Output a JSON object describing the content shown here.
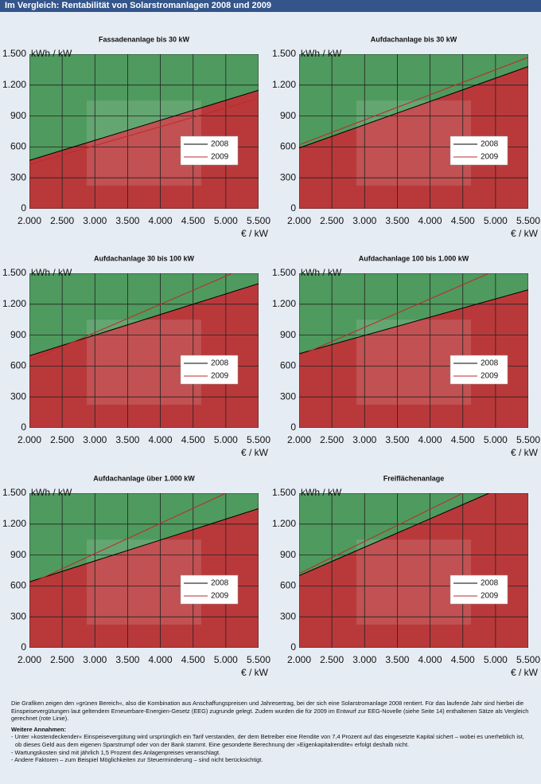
{
  "header": {
    "title": "Im Vergleich: Rentabilität von Solarstromanlagen 2008 und 2009"
  },
  "chart_data": [
    {
      "type": "line",
      "title": "Fassadenanlage bis 30 kW",
      "y_label": "kWh / kW",
      "x_label": "€ / kW",
      "xlim": [
        2000,
        5500
      ],
      "ylim": [
        0,
        1500
      ],
      "grid": true,
      "xticks": [
        {
          "value": 2000,
          "label": "2.000"
        },
        {
          "value": 2500,
          "label": "2.500"
        },
        {
          "value": 3000,
          "label": "3.000"
        },
        {
          "value": 3500,
          "label": "3.500"
        },
        {
          "value": 4000,
          "label": "4.000"
        },
        {
          "value": 4500,
          "label": "4.500"
        },
        {
          "value": 5000,
          "label": "5.000"
        },
        {
          "value": 5500,
          "label": "5.500"
        }
      ],
      "yticks": [
        0,
        300,
        600,
        900,
        {
          "value": 1200,
          "label": "1.200"
        },
        {
          "value": 1500,
          "label": "1.500"
        }
      ],
      "series": [
        {
          "name": "2008",
          "color": "#000000",
          "x": [
            2000,
            5500
          ],
          "values": [
            470,
            1150
          ]
        },
        {
          "name": "2009",
          "color": "#c0282a",
          "x": [
            2000,
            5500
          ],
          "values": [
            430,
            1070
          ]
        }
      ]
    },
    {
      "type": "line",
      "title": "Aufdachanlage bis 30 kW",
      "y_label": "kWh / kW",
      "x_label": "€ / kW",
      "xlim": [
        2000,
        5500
      ],
      "ylim": [
        0,
        1500
      ],
      "grid": true,
      "xticks": [
        {
          "value": 2000,
          "label": "2.000"
        },
        {
          "value": 2500,
          "label": "2.500"
        },
        {
          "value": 3000,
          "label": "3.000"
        },
        {
          "value": 3500,
          "label": "3.500"
        },
        {
          "value": 4000,
          "label": "4.000"
        },
        {
          "value": 4500,
          "label": "4.500"
        },
        {
          "value": 5000,
          "label": "5.000"
        },
        {
          "value": 5500,
          "label": "5.500"
        }
      ],
      "yticks": [
        0,
        300,
        600,
        900,
        {
          "value": 1200,
          "label": "1.200"
        },
        {
          "value": 1500,
          "label": "1.500"
        }
      ],
      "series": [
        {
          "name": "2008",
          "color": "#000000",
          "x": [
            2000,
            5500
          ],
          "values": [
            590,
            1380
          ]
        },
        {
          "name": "2009",
          "color": "#c0282a",
          "x": [
            2000,
            5500
          ],
          "values": [
            620,
            1470
          ]
        }
      ]
    },
    {
      "type": "line",
      "title": "Aufdachanlage 30 bis 100 kW",
      "y_label": "kWh / kW",
      "x_label": "€ / kW",
      "xlim": [
        2000,
        5500
      ],
      "ylim": [
        0,
        1500
      ],
      "grid": true,
      "xticks": [
        {
          "value": 2000,
          "label": "2.000"
        },
        {
          "value": 2500,
          "label": "2.500"
        },
        {
          "value": 3000,
          "label": "3.000"
        },
        {
          "value": 3500,
          "label": "3.500"
        },
        {
          "value": 4000,
          "label": "4.000"
        },
        {
          "value": 4500,
          "label": "4.500"
        },
        {
          "value": 5000,
          "label": "5.000"
        },
        {
          "value": 5500,
          "label": "5.500"
        }
      ],
      "yticks": [
        0,
        300,
        600,
        900,
        {
          "value": 1200,
          "label": "1.200"
        },
        {
          "value": 1500,
          "label": "1.500"
        }
      ],
      "series": [
        {
          "name": "2008",
          "color": "#000000",
          "x": [
            2000,
            5500
          ],
          "values": [
            700,
            1400
          ]
        },
        {
          "name": "2009",
          "color": "#c0282a",
          "x": [
            2000,
            5100
          ],
          "values": [
            650,
            1500
          ]
        }
      ]
    },
    {
      "type": "line",
      "title": "Aufdachanlage 100 bis 1.000 kW",
      "y_label": "kWh / kW",
      "x_label": "€ / kW",
      "xlim": [
        2000,
        5500
      ],
      "ylim": [
        0,
        1500
      ],
      "grid": true,
      "xticks": [
        {
          "value": 2000,
          "label": "2.000"
        },
        {
          "value": 2500,
          "label": "2.500"
        },
        {
          "value": 3000,
          "label": "3.000"
        },
        {
          "value": 3500,
          "label": "3.500"
        },
        {
          "value": 4000,
          "label": "4.000"
        },
        {
          "value": 4500,
          "label": "4.500"
        },
        {
          "value": 5000,
          "label": "5.000"
        },
        {
          "value": 5500,
          "label": "5.500"
        }
      ],
      "yticks": [
        0,
        300,
        600,
        900,
        {
          "value": 1200,
          "label": "1.200"
        },
        {
          "value": 1500,
          "label": "1.500"
        }
      ],
      "series": [
        {
          "name": "2008",
          "color": "#000000",
          "x": [
            2000,
            5500
          ],
          "values": [
            720,
            1340
          ]
        },
        {
          "name": "2009",
          "color": "#c0282a",
          "x": [
            2000,
            4900
          ],
          "values": [
            700,
            1500
          ]
        }
      ]
    },
    {
      "type": "line",
      "title": "Aufdachanlage über 1.000 kW",
      "y_label": "kWh / kW",
      "x_label": "€ / kW",
      "xlim": [
        2000,
        5500
      ],
      "ylim": [
        0,
        1500
      ],
      "grid": true,
      "xticks": [
        {
          "value": 2000,
          "label": "2.000"
        },
        {
          "value": 2500,
          "label": "2.500"
        },
        {
          "value": 3000,
          "label": "3.000"
        },
        {
          "value": 3500,
          "label": "3.500"
        },
        {
          "value": 4000,
          "label": "4.000"
        },
        {
          "value": 4500,
          "label": "4.500"
        },
        {
          "value": 5000,
          "label": "5.000"
        },
        {
          "value": 5500,
          "label": "5.500"
        }
      ],
      "yticks": [
        0,
        300,
        600,
        900,
        {
          "value": 1200,
          "label": "1.200"
        },
        {
          "value": 1500,
          "label": "1.500"
        }
      ],
      "series": [
        {
          "name": "2008",
          "color": "#000000",
          "x": [
            2000,
            5500
          ],
          "values": [
            640,
            1350
          ]
        },
        {
          "name": "2009",
          "color": "#c0282a",
          "x": [
            2000,
            5000
          ],
          "values": [
            620,
            1500
          ]
        }
      ]
    },
    {
      "type": "line",
      "title": "Freiflächenanlage",
      "y_label": "kWh / kW",
      "x_label": "€ / kW",
      "xlim": [
        2000,
        5500
      ],
      "ylim": [
        0,
        1500
      ],
      "grid": true,
      "xticks": [
        {
          "value": 2000,
          "label": "2.000"
        },
        {
          "value": 2500,
          "label": "2.500"
        },
        {
          "value": 3000,
          "label": "3.000"
        },
        {
          "value": 3500,
          "label": "3.500"
        },
        {
          "value": 4000,
          "label": "4.000"
        },
        {
          "value": 4500,
          "label": "4.500"
        },
        {
          "value": 5000,
          "label": "5.000"
        },
        {
          "value": 5500,
          "label": "5.500"
        }
      ],
      "yticks": [
        0,
        300,
        600,
        900,
        {
          "value": 1200,
          "label": "1.200"
        },
        {
          "value": 1500,
          "label": "1.500"
        }
      ],
      "series": [
        {
          "name": "2008",
          "color": "#000000",
          "x": [
            2000,
            4900
          ],
          "values": [
            700,
            1500
          ]
        },
        {
          "name": "2009",
          "color": "#c0282a",
          "x": [
            2000,
            4500
          ],
          "values": [
            720,
            1500
          ]
        }
      ]
    }
  ],
  "notes": {
    "intro": "Die Grafiken zeigen den »grünen Bereich«, also die Kombination aus Anschaffungspreisen und Jahresertrag, bei der sich eine Solarstromanlage 2008 rentiert. Für das laufende Jahr sind hierbei die Einspeisevergütungen laut geltendem Erneuerbare-Energien-Gesetz (EEG) zugrunde gelegt. Zudem wurden die für 2009 im Entwurf zur EEG-Novelle (siehe Seite 14) enthaltenen Sätze als Vergleich gerechnet (rote Linie).",
    "heading": "Weitere Annahmen:",
    "items": [
      "- Unter »kostendeckender« Einspeisevergütung wird ursprünglich ein Tarif verstanden, der dem Betreiber eine Rendite von 7,4 Prozent auf das eingesetzte Kapital sichert – wobei es unerheblich ist, ob dieses Geld aus dem eigenen Sparstrumpf oder von der Bank stammt. Eine gesonderte Berechnung der »Eigenkapitalrendite« erfolgt deshalb nicht.",
      "- Wartungskosten sind mit jährlich 1,5 Prozent des Anlagenpreises veranschlagt.",
      "- Andere Faktoren – zum Beispiel Möglichkeiten zur Steuerminderung – sind nicht berücksichtigt."
    ]
  }
}
